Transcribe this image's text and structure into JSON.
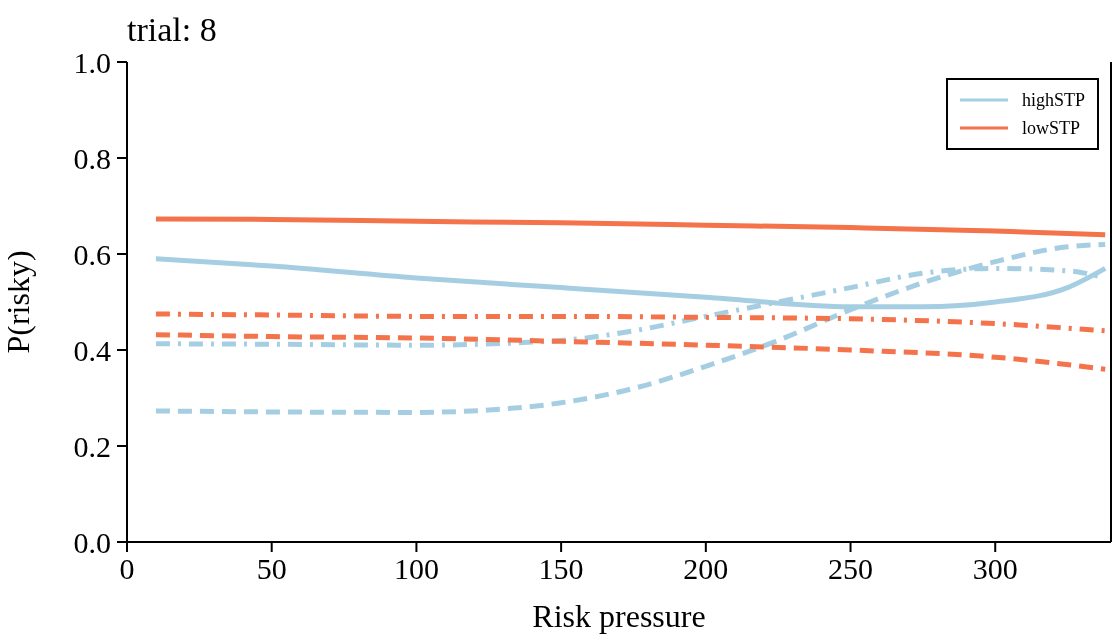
{
  "chart_data": {
    "type": "line",
    "title": "trial: 8",
    "xlabel": "Risk pressure",
    "ylabel": "P(risky)",
    "xlim": [
      0,
      340
    ],
    "xticks": [
      0,
      50,
      100,
      150,
      200,
      250,
      300
    ],
    "ylim": [
      0,
      1
    ],
    "yticks": [
      {
        "value": 0,
        "label": "0.0"
      },
      {
        "value": 0.2,
        "label": "0.2"
      },
      {
        "value": 0.4,
        "label": "0.4"
      },
      {
        "value": 0.6,
        "label": "0.6"
      },
      {
        "value": 0.8,
        "label": "0.8"
      },
      {
        "value": 1,
        "label": "1.0"
      }
    ],
    "grid": false,
    "legend": "top right",
    "marker": "none",
    "series": [
      {
        "name": "highSTP",
        "color": "#a6cee3",
        "line_style": "solid",
        "x": [
          10,
          50,
          100,
          150,
          200,
          250,
          275,
          300,
          325,
          338
        ],
        "values": [
          0.59,
          0.575,
          0.55,
          0.53,
          0.51,
          0.49,
          0.49,
          0.5,
          0.53,
          0.57
        ]
      },
      {
        "name": "lowSTP",
        "color": "#f4734b",
        "line_style": "solid",
        "x": [
          10,
          50,
          100,
          150,
          200,
          250,
          300,
          338
        ],
        "values": [
          0.673,
          0.672,
          0.668,
          0.665,
          0.66,
          0.655,
          0.648,
          0.64
        ]
      },
      {
        "color": "#a6cee3",
        "line_style": "dashed",
        "x": [
          10,
          50,
          100,
          125,
          150,
          175,
          200,
          225,
          250,
          275,
          300,
          325,
          338
        ],
        "values": [
          0.273,
          0.271,
          0.27,
          0.275,
          0.29,
          0.32,
          0.366,
          0.42,
          0.484,
          0.54,
          0.584,
          0.615,
          0.62
        ]
      },
      {
        "color": "#a6cee3",
        "line_style": "dashdot",
        "x": [
          10,
          50,
          100,
          150,
          175,
          200,
          225,
          250,
          275,
          300,
          325,
          338
        ],
        "values": [
          0.413,
          0.412,
          0.41,
          0.42,
          0.44,
          0.47,
          0.5,
          0.53,
          0.56,
          0.57,
          0.565,
          0.55
        ]
      },
      {
        "color": "#f4734b",
        "line_style": "dashed",
        "x": [
          10,
          50,
          100,
          150,
          200,
          250,
          300,
          338
        ],
        "values": [
          0.432,
          0.428,
          0.425,
          0.418,
          0.41,
          0.4,
          0.385,
          0.36
        ]
      },
      {
        "color": "#f4734b",
        "line_style": "dashdot",
        "x": [
          10,
          50,
          100,
          150,
          200,
          250,
          300,
          338
        ],
        "values": [
          0.475,
          0.473,
          0.47,
          0.47,
          0.468,
          0.465,
          0.455,
          0.44
        ]
      }
    ]
  }
}
